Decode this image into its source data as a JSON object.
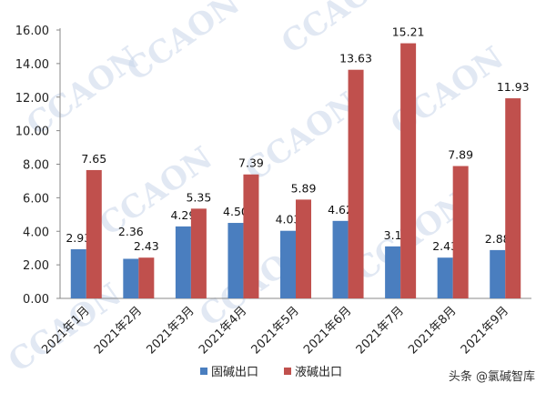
{
  "chart_data": {
    "type": "bar",
    "categories": [
      "2021年1月",
      "2021年2月",
      "2021年3月",
      "2021年4月",
      "2021年5月",
      "2021年6月",
      "2021年7月",
      "2021年8月",
      "2021年9月"
    ],
    "series": [
      {
        "name": "固碱出口",
        "color": "#4a7ebf",
        "values": [
          2.93,
          2.36,
          4.29,
          4.5,
          4.03,
          4.62,
          3.1,
          2.43,
          2.88
        ],
        "labels": [
          "2.93",
          "2.36",
          "4.29",
          "4.50",
          "4.03",
          "4.62",
          "3.1",
          "2.43",
          "2.88"
        ]
      },
      {
        "name": "液碱出口",
        "color": "#c0504d",
        "values": [
          7.65,
          2.43,
          5.35,
          7.39,
          5.89,
          13.63,
          15.21,
          7.89,
          11.93
        ],
        "labels": [
          "7.65",
          "2.43",
          "5.35",
          "7.39",
          "5.89",
          "13.63",
          "15.21",
          "7.89",
          "11.93"
        ]
      }
    ],
    "yticks": [
      "0.00",
      "2.00",
      "4.00",
      "6.00",
      "8.00",
      "10.00",
      "12.00",
      "14.00",
      "16.00"
    ],
    "ylim": [
      0,
      16
    ],
    "grid": false,
    "legend": "bottom"
  },
  "watermark": "CCAON",
  "credit": "头条 @氯碱智库"
}
